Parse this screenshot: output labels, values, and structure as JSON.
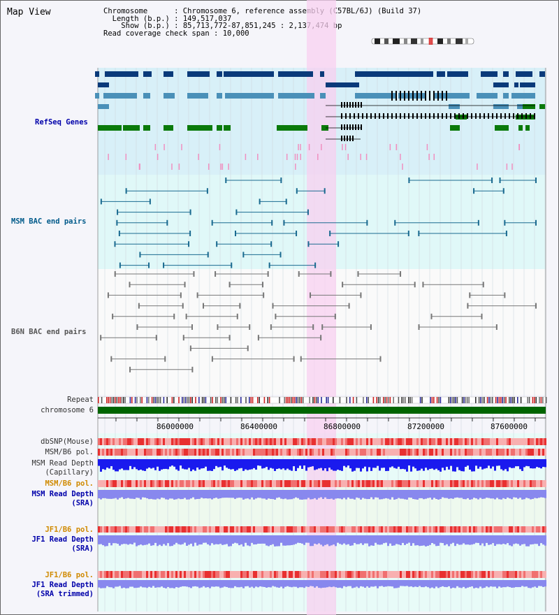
{
  "title": "Map View",
  "info": {
    "chromosome_label": "Chromosome",
    "chromosome_value": "Chromosome 6, reference assembly (C57BL/6J) (Build 37)",
    "length_label": "Length (b.p.)",
    "length_value": "149,517,037",
    "show_label": "Show (b.p.)",
    "show_value": "85,713,772-87,851,245 : 2,137,474 bp",
    "coverage_label": "Read coverage check span",
    "coverage_value": "10,000"
  },
  "tracks": {
    "refseq": "RefSeq Genes",
    "msm_bac": "MSM BAC end pairs",
    "b6n_bac": "B6N BAC end pairs",
    "repeat": "Repeat",
    "chromosome": "chromosome 6",
    "dbsnp": "dbSNP(Mouse)",
    "msm_b6_pol_1": "MSM/B6 pol.",
    "msm_depth_cap_1": "MSM Read Depth",
    "msm_depth_cap_2": "(Capillary)",
    "msm_b6_pol_2": "MSM/B6 pol.",
    "msm_depth_sra_1": "MSM Read Depth",
    "msm_depth_sra_2": "(SRA)",
    "jf1_b6_pol_1": "JF1/B6 pol.",
    "jf1_depth_sra_1": "JF1 Read Depth",
    "jf1_depth_sra_2": "(SRA)",
    "jf1_b6_pol_2": "JF1/B6 pol.",
    "jf1_depth_trim_1": "JF1 Read Depth",
    "jf1_depth_trim_2": "(SRA trimmed)"
  },
  "axis": {
    "ticks": [
      "86000000",
      "86400000",
      "86800000",
      "87200000",
      "87600000"
    ]
  },
  "colors": {
    "refseq_bg": "#d8f0f8",
    "bac_bg": "#e0f8f8",
    "highlight": "#f8d0f0",
    "gene_dark": "#0a3a7a",
    "gene_mid": "#4a90b8",
    "gene_green": "#0a7a0a",
    "gene_pink": "#f090c0",
    "msm_line": "#1a6a90",
    "b6n_line": "#777777",
    "chromosome": "#006400",
    "depth_blue": "#1a1aee",
    "depth_light": "#8888ee",
    "pol_red": "#ee3030"
  }
}
